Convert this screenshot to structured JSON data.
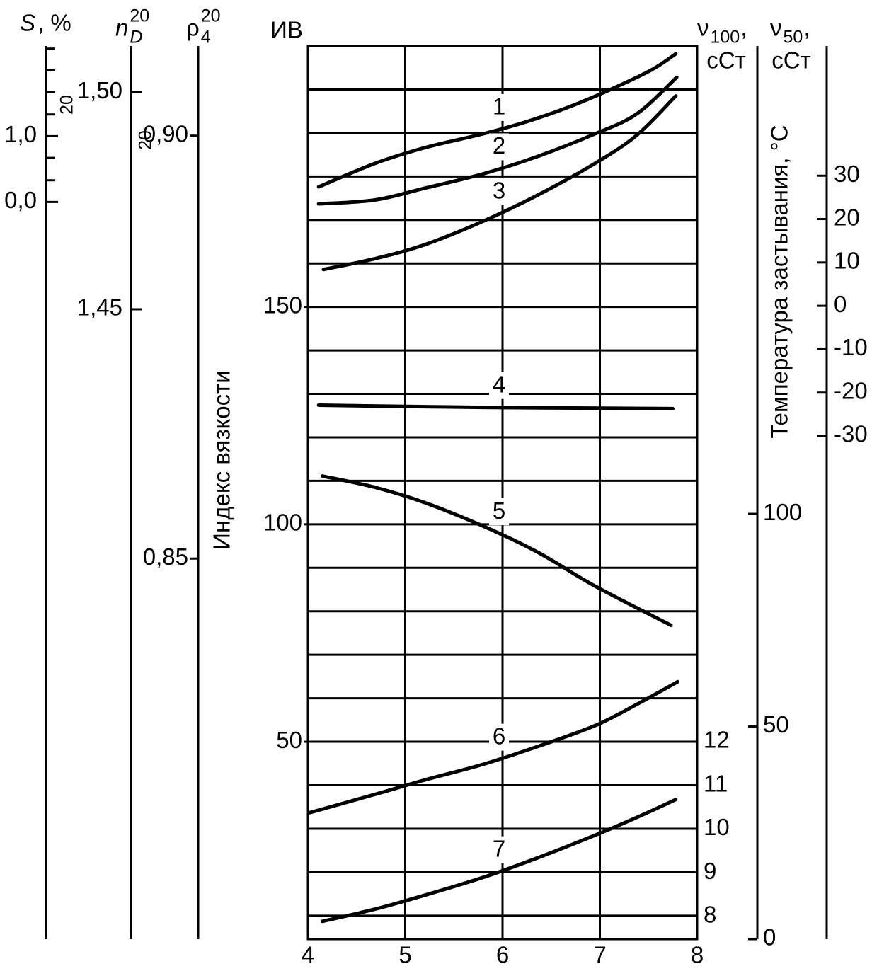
{
  "chart_data": {
    "type": "line",
    "y_title": "ИВ",
    "y_label": "Индекс вязкости",
    "xlim": [
      4,
      8
    ],
    "xticks": [
      4,
      5,
      6,
      7,
      8
    ],
    "ylim": [
      4.6,
      210
    ],
    "yticks": [
      50,
      100,
      150
    ],
    "grid": true,
    "grid_lines": [
      10,
      20,
      30,
      40,
      50,
      60,
      70,
      80,
      90,
      100,
      110,
      120,
      130,
      140,
      150,
      160,
      170,
      180,
      190,
      200
    ],
    "series": [
      {
        "name": "1",
        "color": "#000000",
        "x": [
          4.11,
          4.69,
          5.2,
          5.8,
          6.22,
          6.65,
          7.09,
          7.53,
          7.78
        ],
        "values": [
          177.6,
          183,
          186.6,
          189.8,
          192.4,
          195.7,
          199.8,
          204.5,
          208.2
        ]
      },
      {
        "name": "2",
        "color": "#000000",
        "x": [
          4.11,
          4.69,
          5.2,
          5.8,
          6.36,
          6.95,
          7.38,
          7.79
        ],
        "values": [
          173.7,
          174.6,
          177.3,
          180.6,
          184.6,
          189.8,
          194.4,
          202.8
        ]
      },
      {
        "name": "3",
        "color": "#000000",
        "x": [
          4.16,
          4.69,
          5.2,
          5.8,
          6.36,
          6.95,
          7.38,
          7.78
        ],
        "values": [
          158.6,
          161.1,
          164.3,
          169.7,
          175.7,
          183,
          189.5,
          198.5
        ]
      },
      {
        "name": "4",
        "color": "#000000",
        "x": [
          4.11,
          5.8,
          7.75
        ],
        "values": [
          127.4,
          126.9,
          126.6
        ]
      },
      {
        "name": "5",
        "color": "#000000",
        "x": [
          4.15,
          4.69,
          5.2,
          5.8,
          6.36,
          6.95,
          7.73
        ],
        "values": [
          111.1,
          108.5,
          105,
          99.6,
          93.6,
          85.8,
          76.8
        ]
      },
      {
        "name": "6",
        "color": "#000000",
        "x": [
          4.02,
          4.69,
          5.2,
          5.8,
          6.36,
          6.95,
          7.38,
          7.8
        ],
        "values": [
          33.7,
          37.9,
          41.2,
          44.8,
          48.9,
          53.7,
          58.6,
          63.8
        ]
      },
      {
        "name": "7",
        "color": "#000000",
        "x": [
          4.15,
          4.69,
          5.2,
          5.8,
          6.36,
          6.95,
          7.38,
          7.78
        ],
        "values": [
          8.7,
          11.5,
          14.7,
          18.8,
          23.3,
          28.5,
          32.6,
          36.7
        ]
      }
    ],
    "s_axis": {
      "title": {
        "main": "S",
        "tail": ", %"
      },
      "note": "20",
      "lim": [
        -11.2,
        2.37
      ],
      "ticks": [
        {
          "value": 1,
          "label": "1,0"
        },
        {
          "value": 0,
          "label": "0,0"
        }
      ],
      "minor_ticks": [
        0.33,
        0.67,
        1.33,
        1.67,
        2,
        2.33
      ]
    },
    "nd_axis": {
      "title": {
        "main": "n",
        "sup": "20",
        "sub": "D"
      },
      "note": "20",
      "lim": [
        1.305,
        1.5106
      ],
      "ticks": [
        {
          "value": 1.5,
          "label": "1,50"
        },
        {
          "value": 1.45,
          "label": "1,45"
        }
      ]
    },
    "rho_axis": {
      "title": {
        "main": "ρ",
        "sup": "20",
        "sub": "4"
      },
      "lim": [
        0.805,
        0.9106
      ],
      "ticks": [
        {
          "value": 0.9,
          "label": "0,90"
        },
        {
          "value": 0.85,
          "label": "0,85"
        }
      ]
    },
    "v100_axis": {
      "title": {
        "main": "ν",
        "sub": "100",
        "tail": ","
      },
      "unit": "сСт",
      "lim": [
        7.48,
        27.92
      ],
      "ticks": [
        8,
        9,
        10,
        11,
        12
      ]
    },
    "v50_axis": {
      "title": {
        "main": "ν",
        "sub": "50",
        "tail": ","
      },
      "unit": "сСт",
      "lim": [
        0,
        210
      ],
      "ticks": [
        0,
        50,
        100
      ]
    },
    "temp_axis": {
      "title": {
        "main": "Температура застывания, °С"
      },
      "lim": [
        -146,
        59.9
      ],
      "ticks": [
        30,
        20,
        10,
        0,
        -10,
        -20,
        -30
      ]
    }
  }
}
